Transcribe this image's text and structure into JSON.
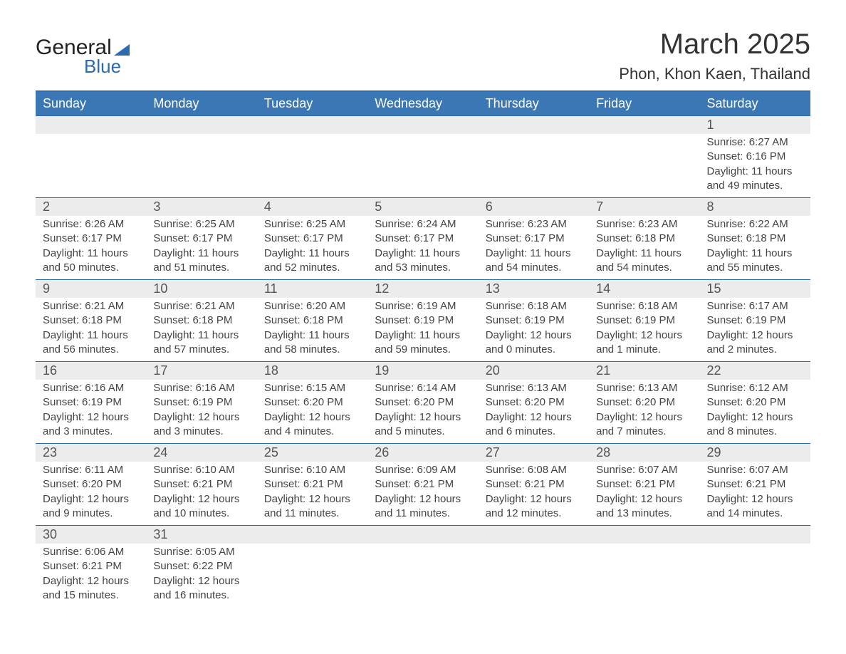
{
  "logo": {
    "text1": "General",
    "text2": "Blue"
  },
  "title": "March 2025",
  "location": "Phon, Khon Kaen, Thailand",
  "columns": [
    "Sunday",
    "Monday",
    "Tuesday",
    "Wednesday",
    "Thursday",
    "Friday",
    "Saturday"
  ],
  "colors": {
    "header_bg": "#3b77b5",
    "header_text": "#ffffff",
    "daynum_bg": "#ececec",
    "border": "#2b6cb0",
    "text": "#444444",
    "background": "#ffffff",
    "logo_blue": "#2b6cb0"
  },
  "weeks": [
    [
      null,
      null,
      null,
      null,
      null,
      null,
      {
        "n": "1",
        "sr": "Sunrise: 6:27 AM",
        "ss": "Sunset: 6:16 PM",
        "d1": "Daylight: 11 hours",
        "d2": "and 49 minutes."
      }
    ],
    [
      {
        "n": "2",
        "sr": "Sunrise: 6:26 AM",
        "ss": "Sunset: 6:17 PM",
        "d1": "Daylight: 11 hours",
        "d2": "and 50 minutes."
      },
      {
        "n": "3",
        "sr": "Sunrise: 6:25 AM",
        "ss": "Sunset: 6:17 PM",
        "d1": "Daylight: 11 hours",
        "d2": "and 51 minutes."
      },
      {
        "n": "4",
        "sr": "Sunrise: 6:25 AM",
        "ss": "Sunset: 6:17 PM",
        "d1": "Daylight: 11 hours",
        "d2": "and 52 minutes."
      },
      {
        "n": "5",
        "sr": "Sunrise: 6:24 AM",
        "ss": "Sunset: 6:17 PM",
        "d1": "Daylight: 11 hours",
        "d2": "and 53 minutes."
      },
      {
        "n": "6",
        "sr": "Sunrise: 6:23 AM",
        "ss": "Sunset: 6:17 PM",
        "d1": "Daylight: 11 hours",
        "d2": "and 54 minutes."
      },
      {
        "n": "7",
        "sr": "Sunrise: 6:23 AM",
        "ss": "Sunset: 6:18 PM",
        "d1": "Daylight: 11 hours",
        "d2": "and 54 minutes."
      },
      {
        "n": "8",
        "sr": "Sunrise: 6:22 AM",
        "ss": "Sunset: 6:18 PM",
        "d1": "Daylight: 11 hours",
        "d2": "and 55 minutes."
      }
    ],
    [
      {
        "n": "9",
        "sr": "Sunrise: 6:21 AM",
        "ss": "Sunset: 6:18 PM",
        "d1": "Daylight: 11 hours",
        "d2": "and 56 minutes."
      },
      {
        "n": "10",
        "sr": "Sunrise: 6:21 AM",
        "ss": "Sunset: 6:18 PM",
        "d1": "Daylight: 11 hours",
        "d2": "and 57 minutes."
      },
      {
        "n": "11",
        "sr": "Sunrise: 6:20 AM",
        "ss": "Sunset: 6:18 PM",
        "d1": "Daylight: 11 hours",
        "d2": "and 58 minutes."
      },
      {
        "n": "12",
        "sr": "Sunrise: 6:19 AM",
        "ss": "Sunset: 6:19 PM",
        "d1": "Daylight: 11 hours",
        "d2": "and 59 minutes."
      },
      {
        "n": "13",
        "sr": "Sunrise: 6:18 AM",
        "ss": "Sunset: 6:19 PM",
        "d1": "Daylight: 12 hours",
        "d2": "and 0 minutes."
      },
      {
        "n": "14",
        "sr": "Sunrise: 6:18 AM",
        "ss": "Sunset: 6:19 PM",
        "d1": "Daylight: 12 hours",
        "d2": "and 1 minute."
      },
      {
        "n": "15",
        "sr": "Sunrise: 6:17 AM",
        "ss": "Sunset: 6:19 PM",
        "d1": "Daylight: 12 hours",
        "d2": "and 2 minutes."
      }
    ],
    [
      {
        "n": "16",
        "sr": "Sunrise: 6:16 AM",
        "ss": "Sunset: 6:19 PM",
        "d1": "Daylight: 12 hours",
        "d2": "and 3 minutes."
      },
      {
        "n": "17",
        "sr": "Sunrise: 6:16 AM",
        "ss": "Sunset: 6:19 PM",
        "d1": "Daylight: 12 hours",
        "d2": "and 3 minutes."
      },
      {
        "n": "18",
        "sr": "Sunrise: 6:15 AM",
        "ss": "Sunset: 6:20 PM",
        "d1": "Daylight: 12 hours",
        "d2": "and 4 minutes."
      },
      {
        "n": "19",
        "sr": "Sunrise: 6:14 AM",
        "ss": "Sunset: 6:20 PM",
        "d1": "Daylight: 12 hours",
        "d2": "and 5 minutes."
      },
      {
        "n": "20",
        "sr": "Sunrise: 6:13 AM",
        "ss": "Sunset: 6:20 PM",
        "d1": "Daylight: 12 hours",
        "d2": "and 6 minutes."
      },
      {
        "n": "21",
        "sr": "Sunrise: 6:13 AM",
        "ss": "Sunset: 6:20 PM",
        "d1": "Daylight: 12 hours",
        "d2": "and 7 minutes."
      },
      {
        "n": "22",
        "sr": "Sunrise: 6:12 AM",
        "ss": "Sunset: 6:20 PM",
        "d1": "Daylight: 12 hours",
        "d2": "and 8 minutes."
      }
    ],
    [
      {
        "n": "23",
        "sr": "Sunrise: 6:11 AM",
        "ss": "Sunset: 6:20 PM",
        "d1": "Daylight: 12 hours",
        "d2": "and 9 minutes."
      },
      {
        "n": "24",
        "sr": "Sunrise: 6:10 AM",
        "ss": "Sunset: 6:21 PM",
        "d1": "Daylight: 12 hours",
        "d2": "and 10 minutes."
      },
      {
        "n": "25",
        "sr": "Sunrise: 6:10 AM",
        "ss": "Sunset: 6:21 PM",
        "d1": "Daylight: 12 hours",
        "d2": "and 11 minutes."
      },
      {
        "n": "26",
        "sr": "Sunrise: 6:09 AM",
        "ss": "Sunset: 6:21 PM",
        "d1": "Daylight: 12 hours",
        "d2": "and 11 minutes."
      },
      {
        "n": "27",
        "sr": "Sunrise: 6:08 AM",
        "ss": "Sunset: 6:21 PM",
        "d1": "Daylight: 12 hours",
        "d2": "and 12 minutes."
      },
      {
        "n": "28",
        "sr": "Sunrise: 6:07 AM",
        "ss": "Sunset: 6:21 PM",
        "d1": "Daylight: 12 hours",
        "d2": "and 13 minutes."
      },
      {
        "n": "29",
        "sr": "Sunrise: 6:07 AM",
        "ss": "Sunset: 6:21 PM",
        "d1": "Daylight: 12 hours",
        "d2": "and 14 minutes."
      }
    ],
    [
      {
        "n": "30",
        "sr": "Sunrise: 6:06 AM",
        "ss": "Sunset: 6:21 PM",
        "d1": "Daylight: 12 hours",
        "d2": "and 15 minutes."
      },
      {
        "n": "31",
        "sr": "Sunrise: 6:05 AM",
        "ss": "Sunset: 6:22 PM",
        "d1": "Daylight: 12 hours",
        "d2": "and 16 minutes."
      },
      null,
      null,
      null,
      null,
      null
    ]
  ]
}
